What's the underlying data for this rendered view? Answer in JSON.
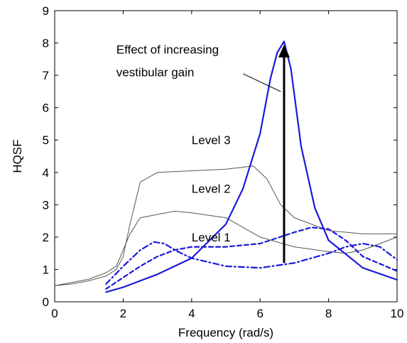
{
  "chart_data": {
    "type": "line",
    "title": "",
    "xlabel": "Frequency (rad/s)",
    "ylabel": "HQSF",
    "xlim": [
      0,
      10
    ],
    "ylim": [
      0,
      9
    ],
    "xticks": [
      0,
      2,
      4,
      6,
      8,
      10
    ],
    "yticks": [
      0,
      1,
      2,
      3,
      4,
      5,
      6,
      7,
      8,
      9
    ],
    "grid": false,
    "legend": "none",
    "series": [
      {
        "color": "#555555",
        "style": "thin",
        "x": [
          0,
          0.5,
          1.0,
          1.5,
          1.8,
          2.0,
          2.2,
          2.5,
          3.0,
          4.0,
          5.0,
          5.8,
          6.2,
          6.6,
          7.0,
          8.0,
          9.0,
          10.0
        ],
        "y": [
          0.5,
          0.55,
          0.65,
          0.8,
          1.0,
          1.4,
          2.4,
          3.7,
          4.0,
          4.05,
          4.1,
          4.2,
          3.8,
          3.0,
          2.6,
          2.2,
          2.1,
          2.1
        ]
      },
      {
        "color": "#555555",
        "style": "thin",
        "x": [
          0,
          0.5,
          1.0,
          1.5,
          1.8,
          2.0,
          2.2,
          2.5,
          3.0,
          3.5,
          4.0,
          5.0,
          5.5,
          6.0,
          7.0,
          8.0,
          8.5,
          9.0,
          10.0
        ],
        "y": [
          0.5,
          0.6,
          0.7,
          0.9,
          1.1,
          1.6,
          2.1,
          2.6,
          2.7,
          2.8,
          2.75,
          2.6,
          2.3,
          2.0,
          1.7,
          1.55,
          1.5,
          1.6,
          2.0
        ]
      },
      {
        "color": "#1a1adc",
        "style": "solid",
        "x": [
          1.5,
          2.0,
          2.5,
          3.0,
          4.0,
          5.0,
          5.5,
          6.0,
          6.3,
          6.5,
          6.7,
          6.9,
          7.2,
          7.6,
          8.0,
          9.0,
          10.0
        ],
        "y": [
          0.3,
          0.45,
          0.65,
          0.85,
          1.35,
          2.4,
          3.5,
          5.2,
          6.9,
          7.7,
          8.05,
          7.2,
          4.8,
          2.9,
          1.9,
          1.05,
          0.68
        ]
      },
      {
        "color": "#1a1adc",
        "style": "dashed",
        "x": [
          1.5,
          2.0,
          2.5,
          3.0,
          3.5,
          4.0,
          5.0,
          6.0,
          7.0,
          7.5,
          8.0,
          8.5,
          9.0,
          10.0
        ],
        "y": [
          0.4,
          0.75,
          1.1,
          1.4,
          1.6,
          1.7,
          1.7,
          1.8,
          2.15,
          2.3,
          2.25,
          1.9,
          1.4,
          0.95
        ]
      },
      {
        "color": "#1a1adc",
        "style": "dashdot",
        "x": [
          1.5,
          2.0,
          2.5,
          2.9,
          3.2,
          3.6,
          4.0,
          5.0,
          6.0,
          7.0,
          8.0,
          8.5,
          9.0,
          9.5,
          10.0
        ],
        "y": [
          0.55,
          1.1,
          1.6,
          1.85,
          1.8,
          1.55,
          1.35,
          1.1,
          1.05,
          1.2,
          1.5,
          1.7,
          1.8,
          1.7,
          1.3
        ]
      }
    ],
    "arrow": {
      "x": 6.7,
      "y_from": 1.2,
      "y_to": 7.95
    },
    "annotations": [
      {
        "text": "Level 3",
        "x": 4.0,
        "y": 5.0
      },
      {
        "text": "Level 2",
        "x": 4.0,
        "y": 3.5
      },
      {
        "text": "Level 1",
        "x": 4.0,
        "y": 2.0
      },
      {
        "text": "Effect of increasing",
        "x": 1.8,
        "y": 7.8
      },
      {
        "text": "vestibular gain",
        "x": 1.8,
        "y": 7.1
      }
    ],
    "callout_line": {
      "x1": 5.5,
      "y1": 7.05,
      "x2": 6.6,
      "y2": 6.5
    }
  }
}
